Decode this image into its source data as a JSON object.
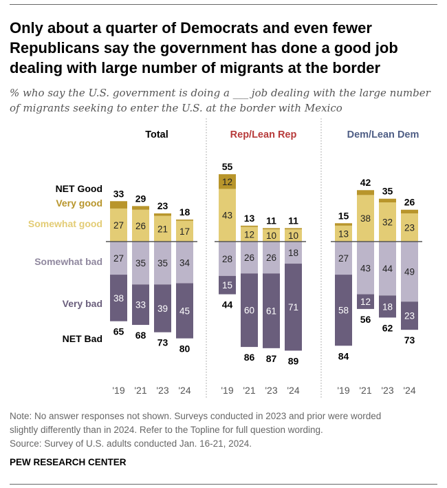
{
  "title": "Only about a quarter of Democrats and even fewer Republicans say the government has done a good job dealing with large number of migrants at the border",
  "subtitle": "% who say the U.S. government is doing a ___ job dealing with the large number of migrants seeking to enter the U.S. at the border with Mexico",
  "row_labels": {
    "net_good": "NET Good",
    "very_good": "Very good",
    "somewhat_good": "Somewhat good",
    "somewhat_bad": "Somewhat bad",
    "very_bad": "Very bad",
    "net_bad": "NET Bad"
  },
  "colors": {
    "very_good": "#B8952B",
    "somewhat_good": "#E3CC75",
    "somewhat_bad": "#BCB5C9",
    "very_bad": "#6A5E7C",
    "rep_title": "#B73A3A",
    "dem_title": "#4F5E85"
  },
  "chart_data": {
    "type": "bar",
    "categories": [
      "'19",
      "'21",
      "'23",
      "'24"
    ],
    "groups": [
      {
        "name": "Total",
        "very_good": [
          6,
          3,
          2,
          1
        ],
        "somewhat_good": [
          27,
          26,
          21,
          17
        ],
        "net_good": [
          33,
          29,
          23,
          18
        ],
        "somewhat_bad": [
          27,
          35,
          35,
          34
        ],
        "very_bad": [
          38,
          33,
          39,
          45
        ],
        "net_bad": [
          65,
          68,
          73,
          80
        ],
        "label_very_good": [
          null,
          null,
          null,
          null
        ],
        "label_very_bad": [
          38,
          33,
          39,
          45
        ]
      },
      {
        "name": "Rep/Lean Rep",
        "very_good": [
          12,
          1,
          1,
          1
        ],
        "somewhat_good": [
          43,
          12,
          10,
          10
        ],
        "net_good": [
          55,
          13,
          11,
          11
        ],
        "somewhat_bad": [
          28,
          26,
          26,
          18
        ],
        "very_bad": [
          15,
          60,
          61,
          71
        ],
        "net_bad": [
          44,
          86,
          87,
          89
        ],
        "label_very_good": [
          12,
          null,
          null,
          null
        ],
        "label_very_bad": [
          15,
          60,
          61,
          71
        ]
      },
      {
        "name": "Dem/Lean Dem",
        "very_good": [
          2,
          4,
          3,
          3
        ],
        "somewhat_good": [
          13,
          38,
          32,
          23
        ],
        "net_good": [
          15,
          42,
          35,
          26
        ],
        "somewhat_bad": [
          27,
          43,
          44,
          49
        ],
        "very_bad": [
          58,
          12,
          18,
          23
        ],
        "net_bad": [
          84,
          56,
          62,
          73
        ],
        "label_very_good": [
          null,
          null,
          null,
          null
        ],
        "label_very_bad": [
          58,
          12,
          18,
          23
        ]
      }
    ]
  },
  "notes": [
    "Note: No answer responses not shown. Surveys conducted in 2023 and prior were worded",
    "slightly differently than in 2024. Refer to the Topline for full question wording.",
    "Source: Survey of U.S. adults conducted Jan. 16-21, 2024."
  ],
  "brand": "PEW RESEARCH CENTER"
}
